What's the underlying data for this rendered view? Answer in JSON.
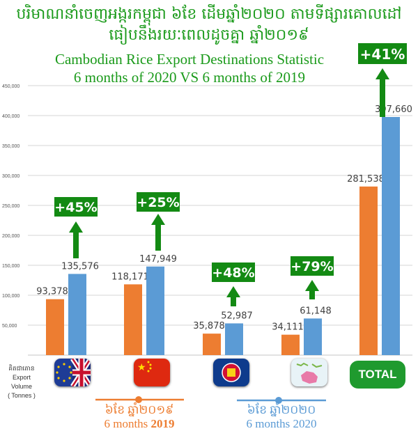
{
  "title_khmer": [
    "បរិមាណនាំចេញអង្ករកម្ពុជា ៦ខែ ដើមឆ្នាំ២០២០ តាមទីផ្សារគោលដៅ",
    "ធៀបនឹងរយៈពេលដូចគ្នា ឆ្នាំ២០១៩"
  ],
  "title_english": [
    "Cambodian Rice Export Destinations Statistic",
    "6 months of 2020 VS 6 months of 2019"
  ],
  "y_axis_label": {
    "khmer": "គិតជាតោន",
    "lines": [
      "Export",
      "Volume",
      "( Tonnes )"
    ]
  },
  "total_label": "TOTAL",
  "legend": {
    "period_2019": {
      "khmer": "៦ខែ ឆ្នាំ២០១៩",
      "english_prefix": "6 months ",
      "english_year": "2019",
      "color": "#ed7d31"
    },
    "period_2020": {
      "khmer": "៦ខែ ឆ្នាំ២០២០",
      "english": "6 months 2020",
      "color": "#5b9bd5"
    }
  },
  "chart_data": {
    "type": "bar",
    "categories": [
      "EU/UK",
      "China",
      "ASEAN",
      "Oceania",
      "TOTAL"
    ],
    "category_icons": [
      "eu-uk-flag-icon",
      "china-flag-icon",
      "asean-flag-icon",
      "oceania-map-icon",
      "total-badge"
    ],
    "series": [
      {
        "values": [
          93378,
          118171,
          35878,
          34111,
          281538
        ],
        "color": "#ed7d31"
      },
      {
        "values": [
          135576,
          147949,
          52987,
          61148,
          397660
        ],
        "color": "#5b9bd5"
      }
    ],
    "data_labels": [
      [
        "93,378",
        "118,171",
        "35,878",
        "34,111",
        "281,538"
      ],
      [
        "135,576",
        "147,949",
        "52,987",
        "61,148",
        "397,660"
      ]
    ],
    "growth_labels": [
      "+45%",
      "+25%",
      "+48%",
      "+79%",
      "+41%"
    ],
    "growth_color": "#138a13",
    "ylim": [
      0,
      450000
    ],
    "yticks": [
      50000,
      100000,
      150000,
      200000,
      250000,
      300000,
      350000,
      400000,
      450000
    ],
    "ytick_labels": [
      "50,000",
      "100,000",
      "150,000",
      "200,000",
      "250,000",
      "300,000",
      "350,000",
      "400,000",
      "450,000"
    ],
    "grid": true
  }
}
